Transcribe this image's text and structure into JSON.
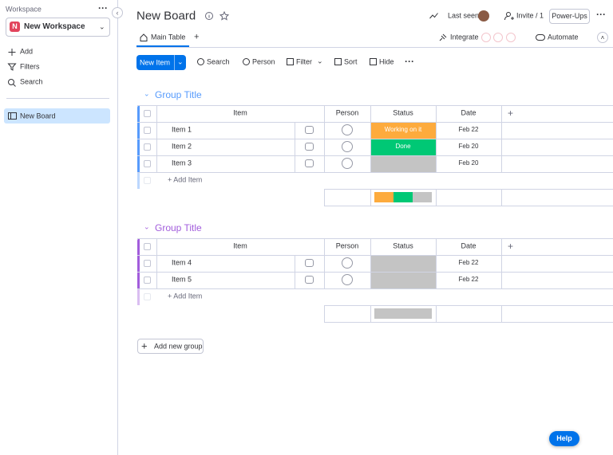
{
  "sidebar": {
    "workspace_label": "Workspace",
    "workspace_initial": "N",
    "workspace_name": "New Workspace",
    "nav": [
      "Add",
      "Filters",
      "Search"
    ],
    "boards": [
      "New Board"
    ]
  },
  "header": {
    "title": "New Board",
    "last_seen": "Last seen",
    "invite": "Invite / 1",
    "power_ups": "Power-Ups"
  },
  "tabs": {
    "items": [
      "Main Table"
    ],
    "integrate": "Integrate",
    "automate": "Automate"
  },
  "toolbar": {
    "new_item": "New Item",
    "buttons": [
      "Search",
      "Person",
      "Filter",
      "Sort",
      "Hide"
    ]
  },
  "groups": [
    {
      "title": "Group Title",
      "color": "#579bfc",
      "columns": [
        "Item",
        "Person",
        "Status",
        "Date"
      ],
      "rows": [
        {
          "item": "Item 1",
          "status": "Working on it",
          "status_color": "#fdab3d",
          "date": "Feb 22"
        },
        {
          "item": "Item 2",
          "status": "Done",
          "status_color": "#00c875",
          "date": "Feb 20"
        },
        {
          "item": "Item 3",
          "status": null,
          "status_color": "#c4c4c4",
          "date": "Feb 20"
        }
      ],
      "add_item": "+ Add Item"
    },
    {
      "title": "Group Title",
      "color": "#a25ddc",
      "columns": [
        "Item",
        "Person",
        "Status",
        "Date"
      ],
      "rows": [
        {
          "item": "Item 4",
          "status": null,
          "status_color": "#c4c4c4",
          "date": "Feb 22"
        },
        {
          "item": "Item 5",
          "status": null,
          "status_color": "#c4c4c4",
          "date": "Feb 22"
        }
      ],
      "add_item": "+ Add Item"
    }
  ],
  "add_group": "Add new group",
  "help": "Help"
}
